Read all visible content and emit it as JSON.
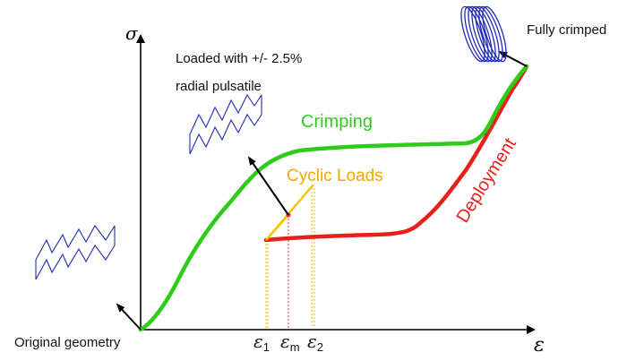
{
  "axes": {
    "y_symbol": "σ",
    "x_symbol": "ε"
  },
  "labels": {
    "fully_crimped": "Fully crimped",
    "loaded_line1": "Loaded with +/- 2.5%",
    "loaded_line2": "radial pulsatile",
    "crimping": "Crimping",
    "cyclic_loads": "Cyclic Loads",
    "deployment": "Deployment",
    "original_geometry": "Original geometry"
  },
  "strain_marks": {
    "e1": {
      "base": "ε",
      "sub": "1"
    },
    "em": {
      "base": "ε",
      "sub": "m"
    },
    "e2": {
      "base": "ε",
      "sub": "2"
    }
  },
  "colors": {
    "crimping": "#2ecc1a",
    "deployment": "#e8201a",
    "cyclic": "#f5c400",
    "cyclic_label": "#f5a800",
    "strain_guides": "#f5b800",
    "mean_guide": "#e83030",
    "stent": "#1f2bb0",
    "axis": "#000000"
  },
  "icons": {
    "original": "stent-original-icon",
    "loaded": "stent-loaded-icon",
    "crimped": "stent-crimped-icon"
  }
}
